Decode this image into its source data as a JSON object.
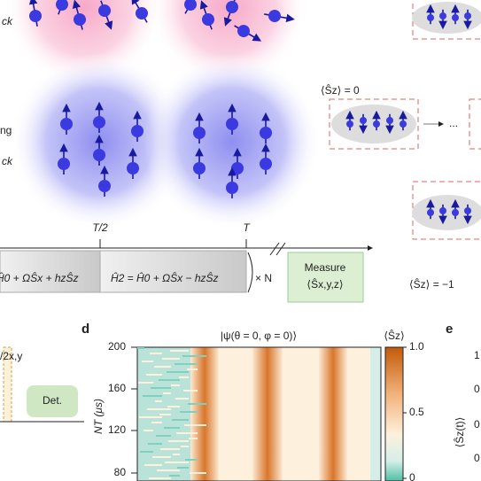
{
  "panel_top": {
    "label_a": "ck",
    "label_b": "ng",
    "label_c": "ck"
  },
  "panel_right": {
    "sz_zero": "⟨Ŝz⟩ = 0",
    "dots": "...",
    "sz_minus": "⟨Ŝz⟩ = −1"
  },
  "timeline": {
    "half": "T/2",
    "full": "T",
    "h1": "Ĥ0 + ΩŜx + hzŜz",
    "h2": "Ĥ2 = Ĥ0 + ΩŜx − hzŜz",
    "repeat": "× N",
    "measure": "Measure",
    "measure_op": "⟨Ŝx,y,z⟩"
  },
  "panel_c": {
    "pulse": "/2x,y",
    "det": "Det."
  },
  "panel_d": {
    "letter": "d",
    "title": "|ψ(θ = 0, φ = 0)⟩",
    "ylabel": "NT (μs)",
    "yticks": [
      "200",
      "160",
      "120",
      "80"
    ],
    "cbar_label": "⟨Ŝz⟩",
    "cbar_ticks": [
      "1.0",
      "0.5",
      "0"
    ]
  },
  "panel_e": {
    "letter": "e",
    "ylabel": "⟨Ŝz(t)⟩",
    "yticks": [
      "1",
      "0",
      "0",
      "0"
    ]
  }
}
